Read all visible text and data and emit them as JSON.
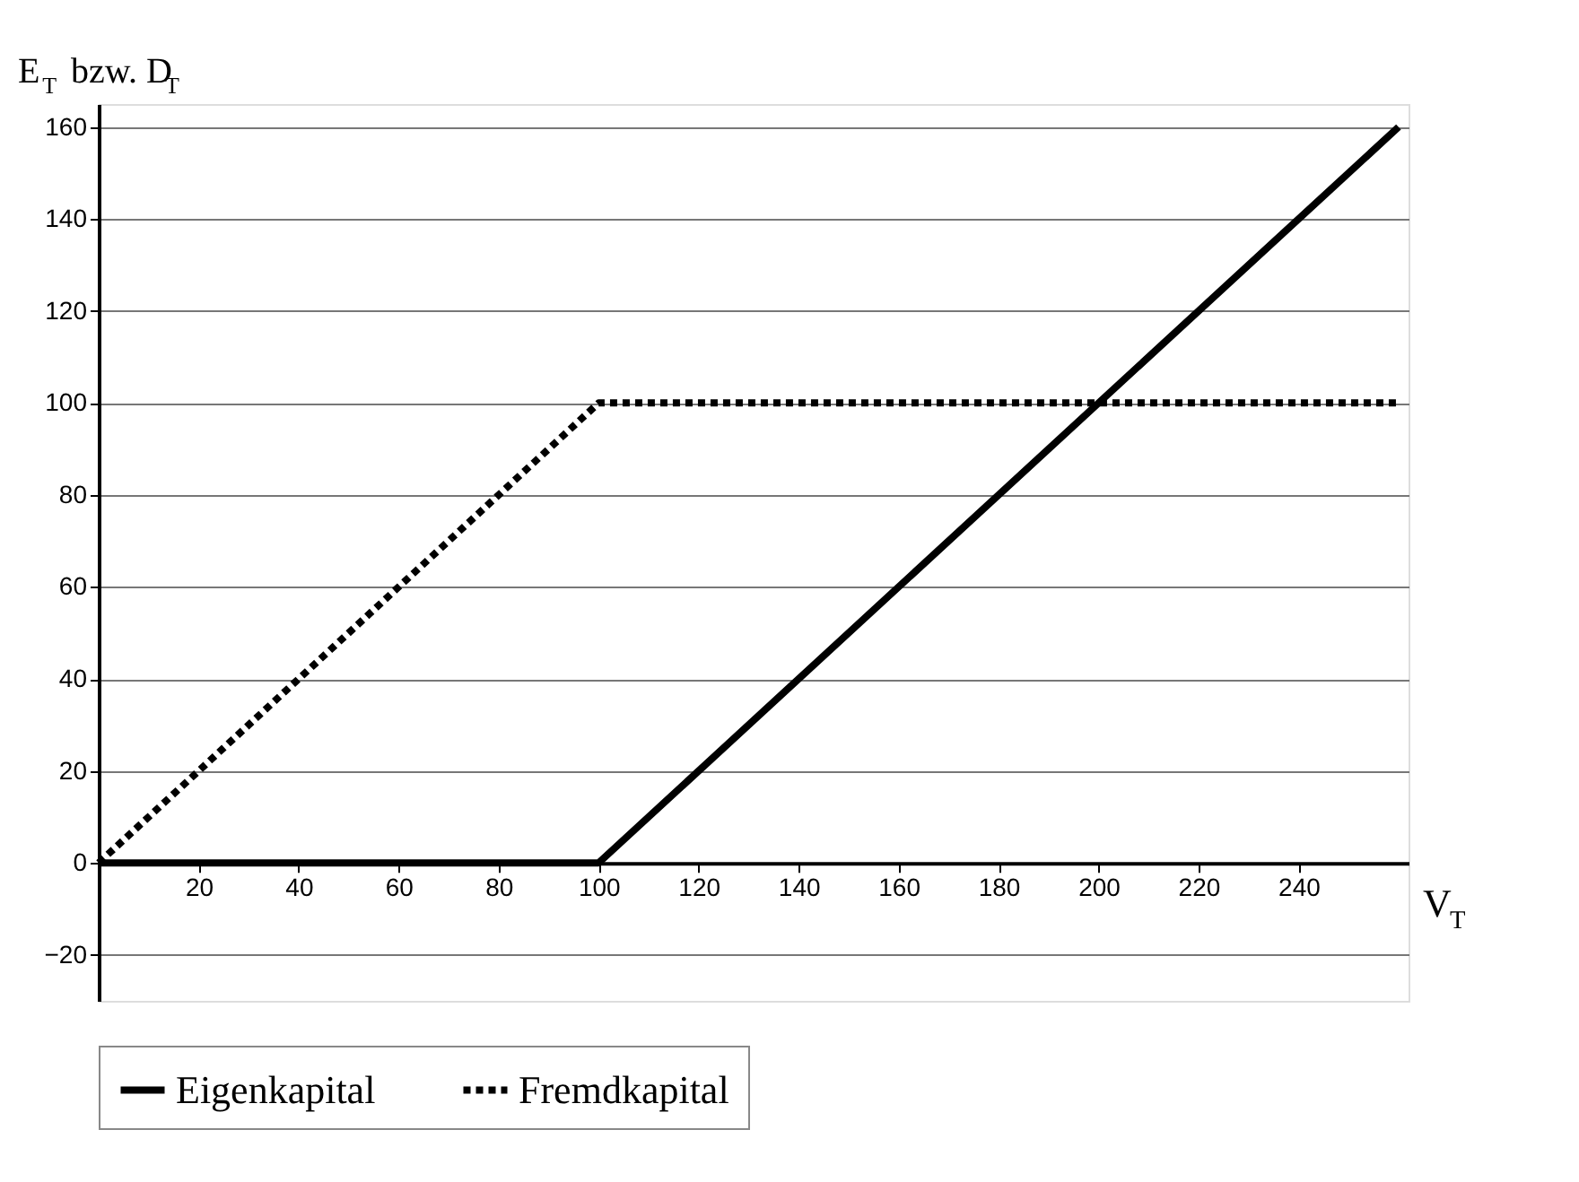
{
  "chart_data": {
    "type": "line",
    "xlabel": "V$_{T}$",
    "ylabel": "E$_{T}$ bzw. D$_{T}$",
    "x": [
      0,
      100,
      260
    ],
    "series": [
      {
        "name": "Eigenkapital",
        "color": "#000000",
        "line_style": "solid",
        "values": [
          0,
          0,
          160
        ]
      },
      {
        "name": "Fremdkapital",
        "color": "#000000",
        "line_style": "dotted",
        "values": [
          0,
          100,
          100
        ]
      }
    ],
    "xlim": [
      0,
      262
    ],
    "xticks": [
      20,
      40,
      60,
      80,
      100,
      120,
      140,
      160,
      180,
      200,
      220,
      240
    ],
    "ylim": [
      -30,
      165
    ],
    "yticks": [
      -20,
      0,
      20,
      40,
      60,
      80,
      100,
      120,
      140,
      160
    ],
    "grid": "y",
    "legend": "bottom",
    "marker": "none"
  }
}
